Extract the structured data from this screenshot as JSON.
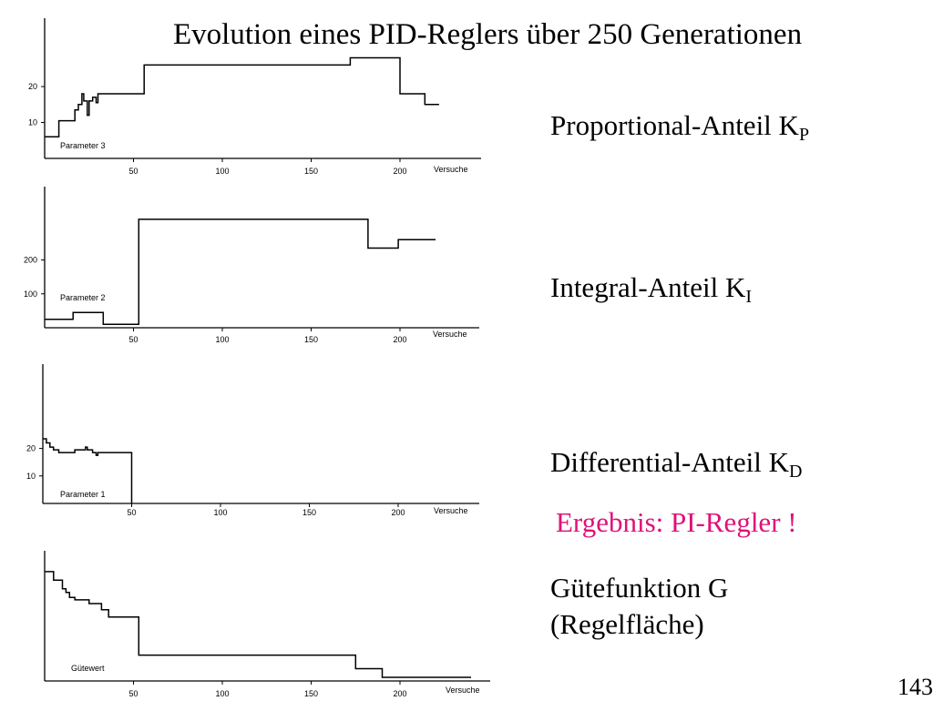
{
  "title": "Evolution eines PID-Reglers über 250 Generationen",
  "labels": {
    "kp_main": "Proportional-Anteil K",
    "kp_sub": "P",
    "ki_main": "Integral-Anteil K",
    "ki_sub": "I",
    "kd_main": "Differential-Anteil K",
    "kd_sub": "D",
    "result": "Ergebnis: PI-Regler !",
    "g_line1": "Gütefunktion G",
    "g_line2": "(Regelfläche)"
  },
  "page_number": "143",
  "colors": {
    "result": "#e0107a"
  },
  "chart_data": [
    {
      "type": "line",
      "line_style": "step",
      "name": "Parameter 3",
      "xlabel": "Versuche",
      "x_ticks": [
        50,
        100,
        150,
        200
      ],
      "y_ticks": [
        10,
        20
      ],
      "xlim": [
        0,
        245
      ],
      "ylim": [
        0,
        37
      ],
      "points": [
        [
          0,
          6
        ],
        [
          8,
          6
        ],
        [
          8,
          10.5
        ],
        [
          17,
          10.5
        ],
        [
          17,
          13.5
        ],
        [
          19,
          13.5
        ],
        [
          19,
          15
        ],
        [
          21,
          15
        ],
        [
          21,
          18
        ],
        [
          22,
          18
        ],
        [
          22,
          16
        ],
        [
          24,
          16
        ],
        [
          24,
          12
        ],
        [
          25,
          12
        ],
        [
          25,
          16
        ],
        [
          27,
          16
        ],
        [
          27,
          17
        ],
        [
          29,
          17
        ],
        [
          29,
          15.5
        ],
        [
          30,
          15.5
        ],
        [
          30,
          18
        ],
        [
          56,
          18
        ],
        [
          56,
          26
        ],
        [
          172,
          26
        ],
        [
          172,
          28
        ],
        [
          200,
          28
        ],
        [
          200,
          18
        ],
        [
          214,
          18
        ],
        [
          214,
          15
        ],
        [
          222,
          15
        ]
      ]
    },
    {
      "type": "line",
      "line_style": "step",
      "name": "Parameter 2",
      "xlabel": "Versuche",
      "x_ticks": [
        50,
        100,
        150,
        200
      ],
      "y_ticks": [
        100,
        200
      ],
      "xlim": [
        0,
        245
      ],
      "ylim": [
        0,
        395
      ],
      "points": [
        [
          0,
          25
        ],
        [
          16,
          25
        ],
        [
          16,
          45
        ],
        [
          33,
          45
        ],
        [
          33,
          10
        ],
        [
          53,
          10
        ],
        [
          53,
          320
        ],
        [
          182,
          320
        ],
        [
          182,
          235
        ],
        [
          199,
          235
        ],
        [
          199,
          260
        ],
        [
          220,
          260
        ]
      ]
    },
    {
      "type": "line",
      "line_style": "step",
      "name": "Parameter 1",
      "xlabel": "Versuche",
      "x_ticks": [
        50,
        100,
        150,
        200
      ],
      "y_ticks": [
        10,
        20
      ],
      "xlim": [
        0,
        245
      ],
      "ylim": [
        0,
        48
      ],
      "points": [
        [
          0,
          23.5
        ],
        [
          2,
          23.5
        ],
        [
          2,
          22
        ],
        [
          4,
          22
        ],
        [
          4,
          20.5
        ],
        [
          6,
          20.5
        ],
        [
          6,
          19.5
        ],
        [
          9,
          19.5
        ],
        [
          9,
          18.5
        ],
        [
          18,
          18.5
        ],
        [
          18,
          19.5
        ],
        [
          24,
          19.5
        ],
        [
          24,
          20.5
        ],
        [
          25,
          20.5
        ],
        [
          25,
          19.5
        ],
        [
          28,
          19.5
        ],
        [
          28,
          18.5
        ],
        [
          30,
          18.5
        ],
        [
          30,
          17.5
        ],
        [
          31,
          17.5
        ],
        [
          31,
          18.5
        ],
        [
          50,
          18.5
        ],
        [
          50,
          0
        ]
      ]
    },
    {
      "type": "line",
      "line_style": "step",
      "name": "Gütewert",
      "xlabel": "Versuche",
      "x_ticks": [
        50,
        100,
        150,
        200
      ],
      "y_ticks": [],
      "xlim": [
        0,
        245
      ],
      "ylim": [
        0,
        100
      ],
      "points": [
        [
          0,
          89
        ],
        [
          5,
          89
        ],
        [
          5,
          82
        ],
        [
          10,
          82
        ],
        [
          10,
          75
        ],
        [
          12,
          75
        ],
        [
          12,
          72
        ],
        [
          14,
          72
        ],
        [
          14,
          68
        ],
        [
          17,
          68
        ],
        [
          17,
          66
        ],
        [
          25,
          66
        ],
        [
          25,
          63
        ],
        [
          32,
          63
        ],
        [
          32,
          58
        ],
        [
          36,
          58
        ],
        [
          36,
          52
        ],
        [
          53,
          52
        ],
        [
          53,
          21
        ],
        [
          175,
          21
        ],
        [
          175,
          10
        ],
        [
          190,
          10
        ],
        [
          190,
          3
        ],
        [
          240,
          3
        ]
      ]
    }
  ]
}
